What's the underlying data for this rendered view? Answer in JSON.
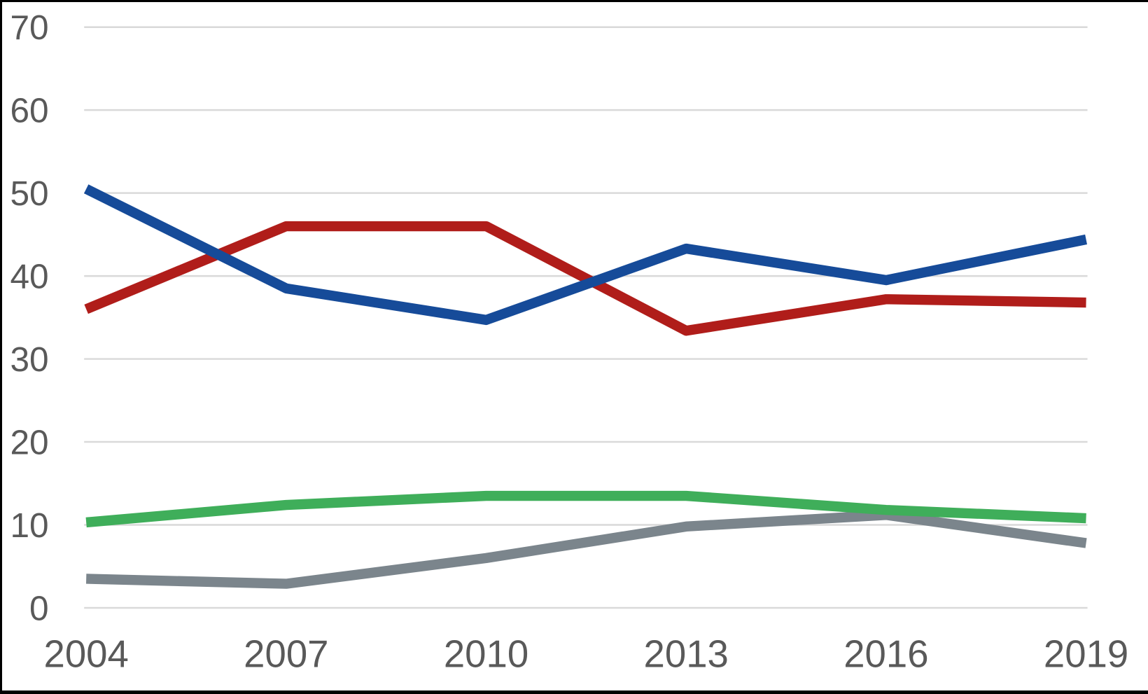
{
  "chart_data": {
    "type": "line",
    "title": "",
    "xlabel": "",
    "ylabel": "",
    "x": [
      "2004",
      "2007",
      "2010",
      "2013",
      "2016",
      "2019"
    ],
    "series": [
      {
        "name": "dark-red-series",
        "color": "#b01d1a",
        "values": [
          36.0,
          46.0,
          46.0,
          33.4,
          37.2,
          36.8
        ]
      },
      {
        "name": "blue-series",
        "color": "#164b99",
        "values": [
          50.5,
          38.5,
          34.7,
          43.3,
          39.5,
          44.4
        ]
      },
      {
        "name": "gray-series",
        "color": "#7b858c",
        "values": [
          3.5,
          2.9,
          6.0,
          9.8,
          11.2,
          7.8
        ]
      },
      {
        "name": "green-series",
        "color": "#3fae5a",
        "values": [
          10.3,
          12.4,
          13.5,
          13.5,
          11.8,
          10.8
        ]
      }
    ],
    "yticks": [
      0,
      10,
      20,
      30,
      40,
      50,
      60,
      70
    ],
    "ylim": [
      0,
      70
    ],
    "grid": true,
    "legend": false,
    "gridline_color": "#d9d9d9",
    "tick_label_color": "#595959",
    "line_width": 14.5
  }
}
